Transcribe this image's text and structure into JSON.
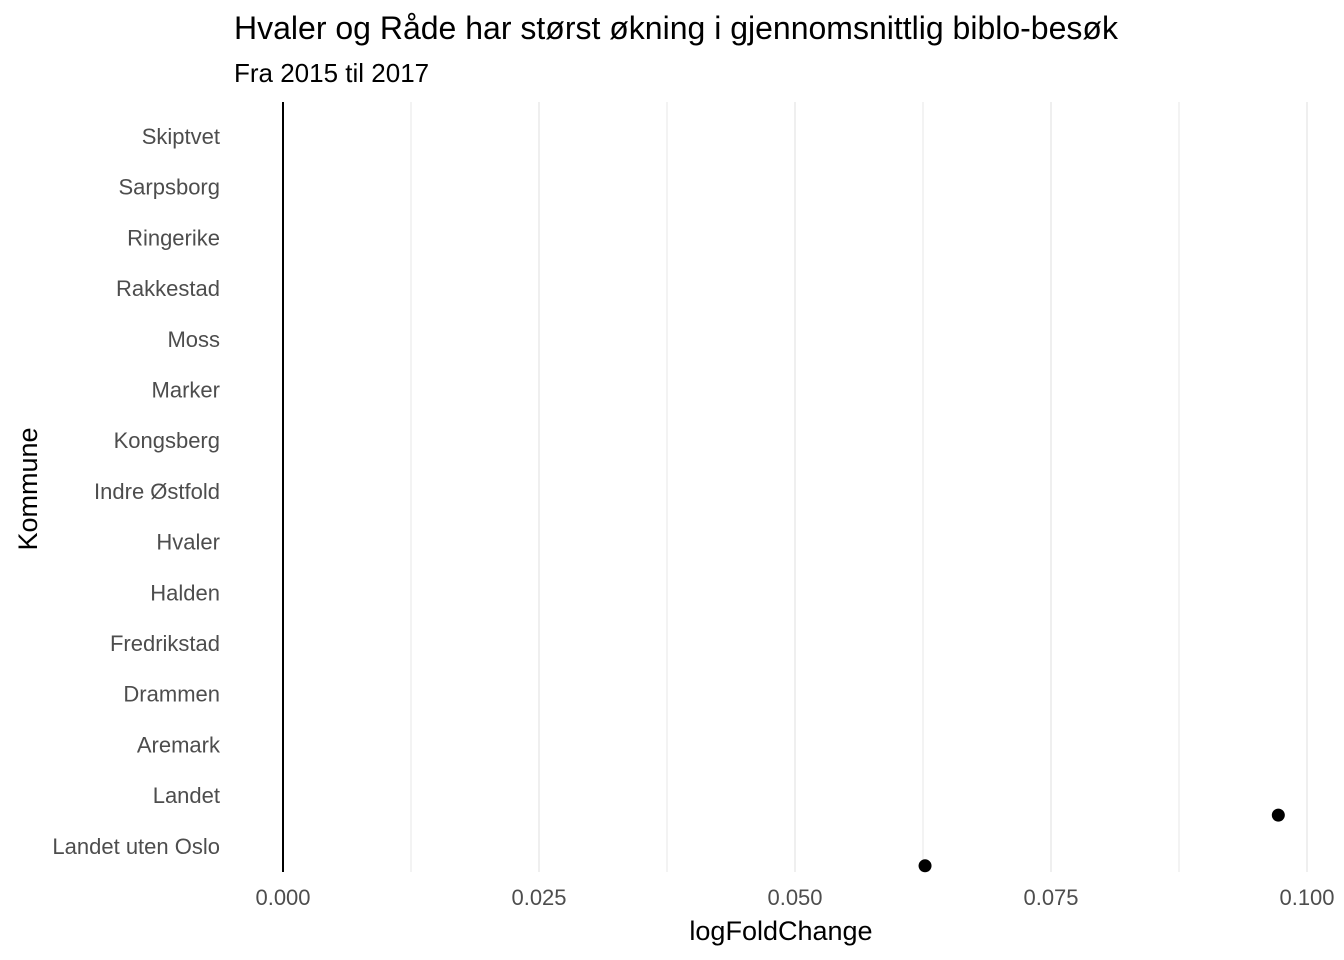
{
  "chart_data": {
    "type": "scatter",
    "title": "Hvaler og Råde har størst økning i gjennomsnittlig biblo-besøk",
    "subtitle": "Fra 2015 til 2017",
    "xlabel": "logFoldChange",
    "ylabel": "Kommune",
    "xlim": [
      0,
      0.1
    ],
    "x_ticks": [
      0.0,
      0.025,
      0.05,
      0.075,
      0.1
    ],
    "x_tick_labels": [
      "0.000",
      "0.025",
      "0.050",
      "0.075",
      "0.100"
    ],
    "categories": [
      "Skiptvet",
      "Sarpsborg",
      "Ringerike",
      "Rakkestad",
      "Moss",
      "Marker",
      "Kongsberg",
      "Indre Østfold",
      "Hvaler",
      "Halden",
      "Fredrikstad",
      "Drammen",
      "Aremark",
      "Landet",
      "Landet uten Oslo"
    ],
    "points": [
      {
        "category": "Landet",
        "x": 0.0972
      },
      {
        "category": "Landet uten Oslo",
        "x": 0.0627
      }
    ],
    "grid": true,
    "reference_line_x": 0,
    "colors": {
      "point": "#000000",
      "grid": "#ebebeb",
      "axis_text": "#4d4d4d",
      "reference_line": "#000000"
    }
  }
}
